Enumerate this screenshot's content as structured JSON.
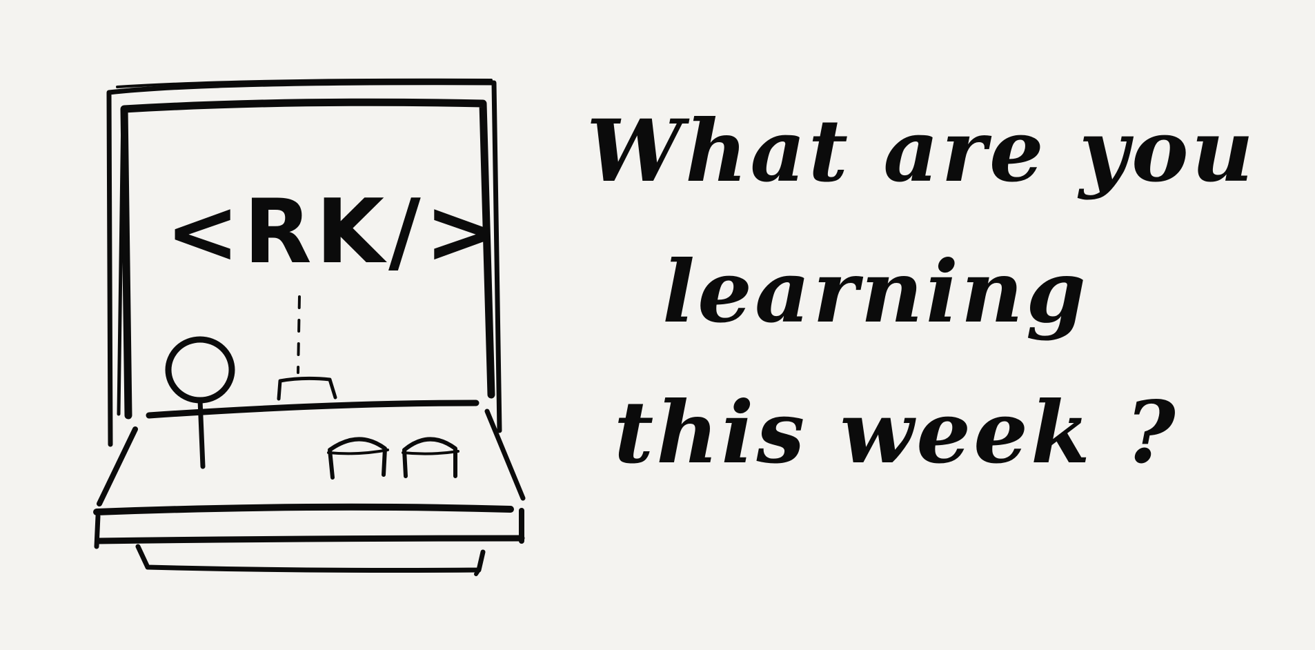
{
  "illustration": {
    "icon": "sketch-laptop-with-person-icon",
    "screen_label": "<RK/>"
  },
  "headline": {
    "line1": "What are you",
    "line2": "learning",
    "line3": "this week ?"
  },
  "colors": {
    "background": "#f4f3f0",
    "ink": "#0b0b0b"
  }
}
